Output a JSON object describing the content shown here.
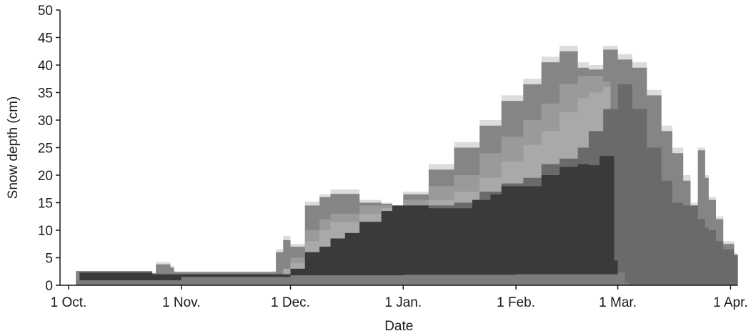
{
  "chart_data": {
    "type": "area",
    "title": "",
    "xlabel": "Date",
    "ylabel": "Snow depth (cm)",
    "ylim": [
      0,
      50
    ],
    "xlim": [
      "2000-09-30",
      "2001-04-03"
    ],
    "y_ticks": [
      0,
      5,
      10,
      15,
      20,
      25,
      30,
      35,
      40,
      45,
      50
    ],
    "x_ticks": [
      {
        "date": "2000-10-01",
        "label": "1 Oct."
      },
      {
        "date": "2000-11-01",
        "label": "1 Nov."
      },
      {
        "date": "2000-12-01",
        "label": "1 Dec."
      },
      {
        "date": "2001-01-01",
        "label": "1 Jan."
      },
      {
        "date": "2001-02-01",
        "label": "1 Feb."
      },
      {
        "date": "2001-03-01",
        "label": "1 Mar."
      },
      {
        "date": "2001-04-01",
        "label": "1 Apr."
      }
    ],
    "grid": false,
    "series": [
      {
        "color": "#dcdcdc",
        "points": [
          [
            "2000-10-03",
            0.9
          ],
          [
            "2000-10-24",
            2.2
          ],
          [
            "2000-10-25",
            4.2
          ],
          [
            "2000-10-29",
            3.5
          ],
          [
            "2000-10-30",
            2.5
          ],
          [
            "2000-11-26",
            2.6
          ],
          [
            "2000-11-27",
            6.5
          ],
          [
            "2000-11-29",
            9.0
          ],
          [
            "2000-12-01",
            7.5
          ],
          [
            "2000-12-05",
            15.2
          ],
          [
            "2000-12-09",
            16.5
          ],
          [
            "2000-12-12",
            17.4
          ],
          [
            "2000-12-20",
            15.5
          ],
          [
            "2000-12-26",
            15.0
          ],
          [
            "2000-12-29",
            14.5
          ],
          [
            "2001-01-01",
            17.0
          ],
          [
            "2001-01-08",
            22.0
          ],
          [
            "2001-01-15",
            26.0
          ],
          [
            "2001-01-22",
            30.0
          ],
          [
            "2001-01-28",
            34.5
          ],
          [
            "2001-02-03",
            37.5
          ],
          [
            "2001-02-08",
            41.5
          ],
          [
            "2001-02-13",
            43.5
          ],
          [
            "2001-02-18",
            40.5
          ],
          [
            "2001-02-21",
            40.0
          ],
          [
            "2001-02-25",
            43.5
          ],
          [
            "2001-03-01",
            42.0
          ],
          [
            "2001-03-05",
            40.5
          ],
          [
            "2001-03-09",
            35.5
          ],
          [
            "2001-03-13",
            29.0
          ],
          [
            "2001-03-16",
            25.0
          ],
          [
            "2001-03-19",
            20.0
          ],
          [
            "2001-03-21",
            15.0
          ],
          [
            "2001-03-23",
            25.0
          ],
          [
            "2001-03-25",
            20.0
          ],
          [
            "2001-03-26",
            16.0
          ],
          [
            "2001-03-28",
            12.5
          ],
          [
            "2001-03-30",
            8.0
          ],
          [
            "2001-04-02",
            5.8
          ]
        ]
      },
      {
        "color": "#858585",
        "points": [
          [
            "2000-10-03",
            2.6
          ],
          [
            "2000-10-24",
            2.2
          ],
          [
            "2000-10-25",
            3.8
          ],
          [
            "2000-10-29",
            3.2
          ],
          [
            "2000-10-30",
            2.4
          ],
          [
            "2000-11-26",
            2.4
          ],
          [
            "2000-11-27",
            6.0
          ],
          [
            "2000-11-29",
            8.2
          ],
          [
            "2000-12-01",
            7.0
          ],
          [
            "2000-12-05",
            14.5
          ],
          [
            "2000-12-09",
            16.0
          ],
          [
            "2000-12-12",
            16.6
          ],
          [
            "2000-12-20",
            15.0
          ],
          [
            "2000-12-26",
            14.8
          ],
          [
            "2000-12-29",
            14.3
          ],
          [
            "2001-01-01",
            16.5
          ],
          [
            "2001-01-08",
            21.0
          ],
          [
            "2001-01-15",
            25.0
          ],
          [
            "2001-01-22",
            29.0
          ],
          [
            "2001-01-28",
            33.5
          ],
          [
            "2001-02-03",
            36.5
          ],
          [
            "2001-02-08",
            40.5
          ],
          [
            "2001-02-13",
            42.5
          ],
          [
            "2001-02-18",
            39.5
          ],
          [
            "2001-02-21",
            39.2
          ],
          [
            "2001-02-25",
            42.8
          ],
          [
            "2001-03-01",
            41.0
          ],
          [
            "2001-03-05",
            39.5
          ],
          [
            "2001-03-09",
            34.5
          ],
          [
            "2001-03-13",
            28.0
          ],
          [
            "2001-03-16",
            24.0
          ],
          [
            "2001-03-19",
            19.0
          ],
          [
            "2001-03-21",
            14.5
          ],
          [
            "2001-03-23",
            24.5
          ],
          [
            "2001-03-25",
            19.5
          ],
          [
            "2001-03-26",
            15.5
          ],
          [
            "2001-03-28",
            12.0
          ],
          [
            "2001-03-30",
            7.5
          ],
          [
            "2001-04-02",
            5.5
          ]
        ]
      },
      {
        "color": "#9a9a9a",
        "points": [
          [
            "2000-11-27",
            0.8
          ],
          [
            "2000-11-29",
            3.0
          ],
          [
            "2000-12-01",
            5.0
          ],
          [
            "2000-12-05",
            10.0
          ],
          [
            "2000-12-09",
            12.0
          ],
          [
            "2000-12-12",
            13.0
          ],
          [
            "2000-12-20",
            14.5
          ],
          [
            "2000-12-26",
            14.5
          ],
          [
            "2000-12-29",
            14.0
          ],
          [
            "2001-01-01",
            15.5
          ],
          [
            "2001-01-08",
            18.0
          ],
          [
            "2001-01-15",
            20.0
          ],
          [
            "2001-01-22",
            24.0
          ],
          [
            "2001-01-28",
            27.0
          ],
          [
            "2001-02-03",
            30.0
          ],
          [
            "2001-02-08",
            33.0
          ],
          [
            "2001-02-13",
            36.5
          ],
          [
            "2001-02-18",
            38.0
          ],
          [
            "2001-02-21",
            38.0
          ],
          [
            "2001-02-25",
            37.0
          ],
          [
            "2001-02-27",
            0.5
          ]
        ]
      },
      {
        "color": "#a9a9a9",
        "points": [
          [
            "2000-11-27",
            0.8
          ],
          [
            "2000-11-29",
            3.0
          ],
          [
            "2000-12-01",
            4.0
          ],
          [
            "2000-12-05",
            8.0
          ],
          [
            "2000-12-09",
            10.0
          ],
          [
            "2000-12-12",
            11.5
          ],
          [
            "2000-12-20",
            13.0
          ],
          [
            "2000-12-26",
            14.0
          ],
          [
            "2000-12-29",
            13.5
          ],
          [
            "2001-01-01",
            14.5
          ],
          [
            "2001-01-08",
            15.5
          ],
          [
            "2001-01-15",
            17.0
          ],
          [
            "2001-01-22",
            19.5
          ],
          [
            "2001-01-28",
            22.5
          ],
          [
            "2001-02-03",
            25.5
          ],
          [
            "2001-02-08",
            28.0
          ],
          [
            "2001-02-13",
            31.5
          ],
          [
            "2001-02-18",
            34.0
          ],
          [
            "2001-02-21",
            35.0
          ],
          [
            "2001-02-25",
            36.0
          ],
          [
            "2001-02-27",
            0.5
          ]
        ]
      },
      {
        "color": "#6a6a6a",
        "points": [
          [
            "2000-12-01",
            3.0
          ],
          [
            "2000-12-05",
            6.0
          ],
          [
            "2000-12-09",
            7.0
          ],
          [
            "2000-12-12",
            8.5
          ],
          [
            "2000-12-20",
            11.5
          ],
          [
            "2000-12-26",
            13.5
          ],
          [
            "2000-12-29",
            13.5
          ],
          [
            "2001-01-01",
            14.0
          ],
          [
            "2001-01-08",
            14.5
          ],
          [
            "2001-01-15",
            15.0
          ],
          [
            "2001-01-22",
            17.0
          ],
          [
            "2001-01-28",
            18.5
          ],
          [
            "2001-02-03",
            19.5
          ],
          [
            "2001-02-08",
            22.0
          ],
          [
            "2001-02-13",
            23.0
          ],
          [
            "2001-02-18",
            25.0
          ],
          [
            "2001-02-21",
            28.0
          ],
          [
            "2001-02-25",
            32.0
          ],
          [
            "2001-03-01",
            36.5
          ],
          [
            "2001-03-05",
            32.0
          ],
          [
            "2001-03-09",
            25.0
          ],
          [
            "2001-03-13",
            19.0
          ],
          [
            "2001-03-16",
            15.0
          ],
          [
            "2001-03-19",
            14.5
          ],
          [
            "2001-03-21",
            14.5
          ],
          [
            "2001-03-23",
            12.0
          ],
          [
            "2001-03-25",
            10.5
          ],
          [
            "2001-03-26",
            10.0
          ],
          [
            "2001-03-28",
            8.0
          ],
          [
            "2001-03-30",
            6.5
          ],
          [
            "2001-04-02",
            5.5
          ]
        ]
      },
      {
        "color": "#3a3a3a",
        "points": [
          [
            "2000-10-04",
            2.3
          ],
          [
            "2000-10-07",
            2.3
          ],
          [
            "2000-10-24",
            2.0
          ],
          [
            "2000-11-01",
            2.0
          ],
          [
            "2000-11-26",
            2.0
          ],
          [
            "2000-12-01",
            3.0
          ],
          [
            "2000-12-05",
            6.0
          ],
          [
            "2000-12-09",
            7.0
          ],
          [
            "2000-12-12",
            8.5
          ],
          [
            "2000-12-16",
            9.5
          ],
          [
            "2000-12-20",
            11.5
          ],
          [
            "2000-12-26",
            13.5
          ],
          [
            "2000-12-29",
            14.5
          ],
          [
            "2001-01-01",
            14.5
          ],
          [
            "2001-01-08",
            14.0
          ],
          [
            "2001-01-15",
            14.0
          ],
          [
            "2001-01-20",
            15.5
          ],
          [
            "2001-01-25",
            16.5
          ],
          [
            "2001-01-28",
            18.0
          ],
          [
            "2001-02-03",
            18.0
          ],
          [
            "2001-02-08",
            20.0
          ],
          [
            "2001-02-13",
            21.5
          ],
          [
            "2001-02-18",
            22.0
          ],
          [
            "2001-02-21",
            21.8
          ],
          [
            "2001-02-24",
            23.5
          ],
          [
            "2001-02-27",
            23.5
          ],
          [
            "2001-02-28",
            4.5
          ]
        ]
      },
      {
        "color": "#7c7c7c",
        "points": [
          [
            "2000-10-03",
            0.9
          ],
          [
            "2000-11-01",
            1.5
          ],
          [
            "2000-12-01",
            1.8
          ],
          [
            "2001-01-01",
            1.9
          ],
          [
            "2001-02-01",
            2.0
          ],
          [
            "2001-03-01",
            2.3
          ],
          [
            "2001-03-03",
            0.5
          ]
        ]
      }
    ]
  }
}
